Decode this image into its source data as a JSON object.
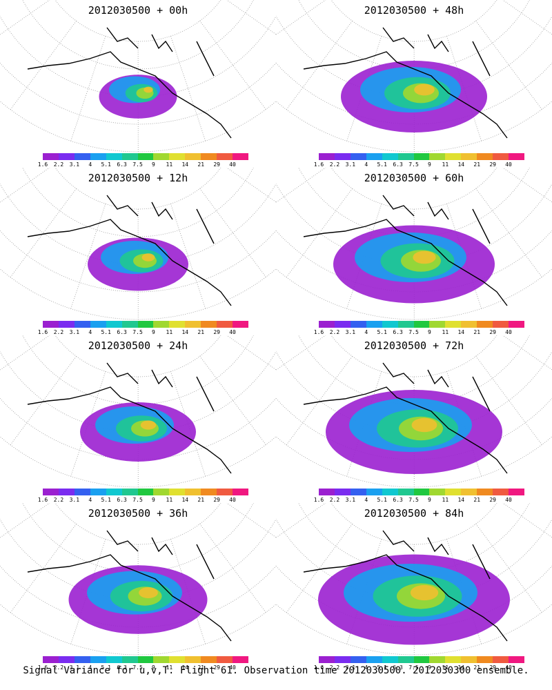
{
  "colorbar": {
    "levels": [
      "1.6",
      "2.2",
      "3.1",
      "4",
      "5.1",
      "6.3",
      "7.5",
      "9",
      "11",
      "14",
      "21",
      "29",
      "40"
    ],
    "colors": [
      "#9b20d0",
      "#7a2cf0",
      "#3460f0",
      "#1aa0f0",
      "#10c8d0",
      "#20c890",
      "#20c840",
      "#a0d830",
      "#e0e030",
      "#f0c030",
      "#f08a20",
      "#f05a40",
      "#f01880"
    ]
  },
  "chart_data": [
    {
      "type": "heatmap",
      "title": "2012030500 + 00h",
      "intensity": 0.15
    },
    {
      "type": "heatmap",
      "title": "2012030500 + 12h",
      "intensity": 0.3
    },
    {
      "type": "heatmap",
      "title": "2012030500 + 24h",
      "intensity": 0.4
    },
    {
      "type": "heatmap",
      "title": "2012030500 + 36h",
      "intensity": 0.55
    },
    {
      "type": "heatmap",
      "title": "2012030500 + 48h",
      "intensity": 0.6
    },
    {
      "type": "heatmap",
      "title": "2012030500 + 60h",
      "intensity": 0.7
    },
    {
      "type": "heatmap",
      "title": "2012030500 + 72h",
      "intensity": 0.8
    },
    {
      "type": "heatmap",
      "title": "2012030500 + 84h",
      "intensity": 0.9
    }
  ],
  "footer": "Signal Variance for u,v,T. Flight 61. Observation time 2012030500. 2012030300 ensemble."
}
